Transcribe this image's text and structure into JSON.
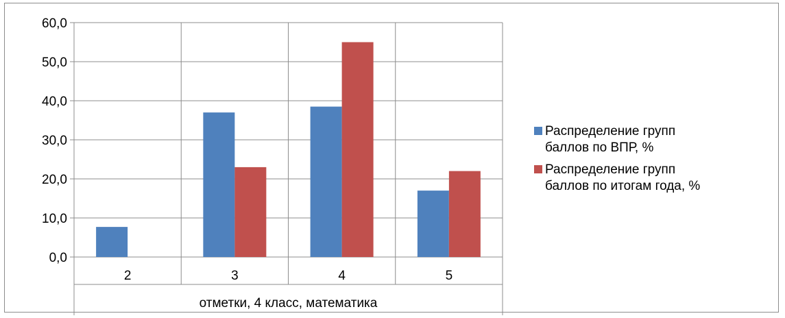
{
  "chart_data": {
    "type": "bar",
    "categories": [
      "2",
      "3",
      "4",
      "5"
    ],
    "series": [
      {
        "name": "Распределение групп баллов по ВПР, %",
        "name_lines": [
          "Распределение групп",
          "баллов по ВПР, %"
        ],
        "values": [
          7.7,
          37.0,
          38.5,
          17.0
        ],
        "color": "#4F81BD"
      },
      {
        "name": "Распределение групп баллов по итогам года, %",
        "name_lines": [
          "Распределение групп",
          "баллов по итогам года, %"
        ],
        "values": [
          0.0,
          23.0,
          55.0,
          22.0
        ],
        "color": "#C0504D"
      }
    ],
    "y_ticks": [
      "0,0",
      "10,0",
      "20,0",
      "30,0",
      "40,0",
      "50,0",
      "60,0"
    ],
    "ylim": [
      0,
      60
    ],
    "xlabel": "отметки, 4 класс, математика",
    "ylabel": "",
    "title": "",
    "grid": true,
    "legend_position": "right"
  }
}
